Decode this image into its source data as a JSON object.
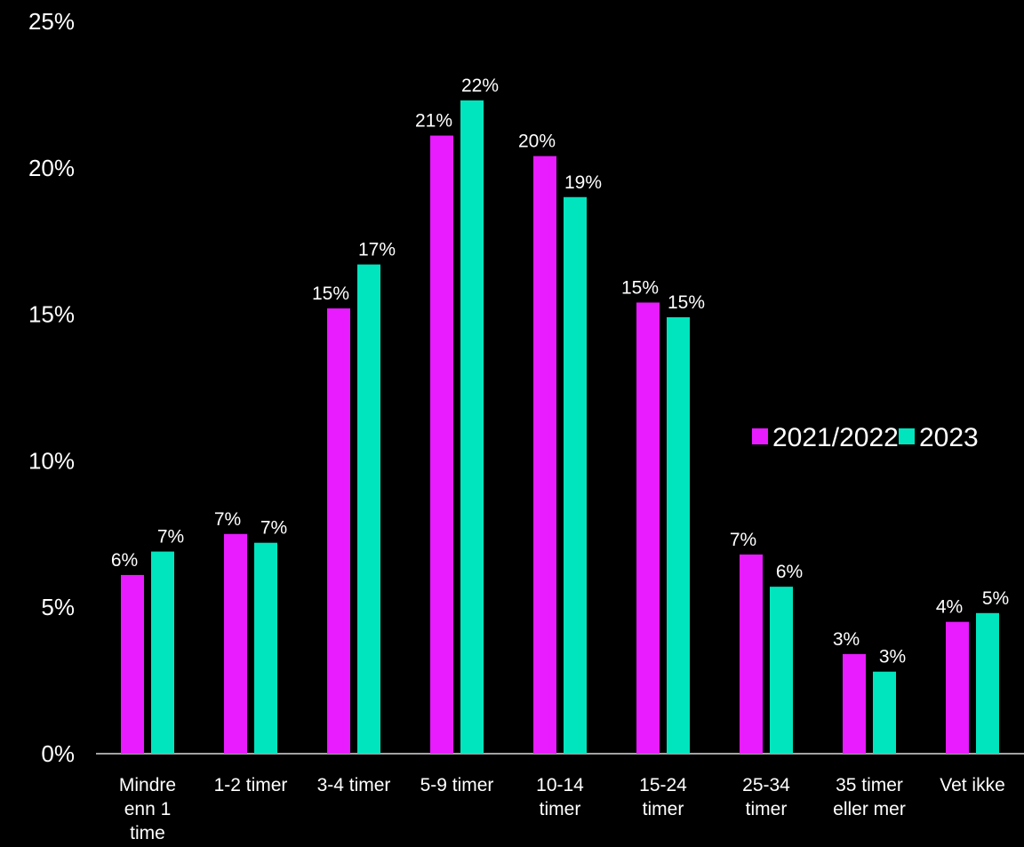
{
  "chart_data": {
    "type": "bar",
    "categories": [
      [
        "Mindre",
        "enn 1",
        "time"
      ],
      [
        "1-2 timer"
      ],
      [
        "3-4 timer"
      ],
      [
        "5-9 timer"
      ],
      [
        "10-14",
        "timer"
      ],
      [
        "15-24",
        "timer"
      ],
      [
        "25-34",
        "timer"
      ],
      [
        "35 timer",
        "eller mer"
      ],
      [
        "Vet ikke"
      ]
    ],
    "series": [
      {
        "name": "2021/2022",
        "color": "#E81CFF",
        "values": [
          6.1,
          7.5,
          15.2,
          21.1,
          20.4,
          15.4,
          6.8,
          3.4,
          4.5
        ],
        "labels": [
          "6%",
          "7%",
          "15%",
          "21%",
          "20%",
          "15%",
          "7%",
          "3%",
          "4%"
        ]
      },
      {
        "name": "2023",
        "color": "#00E5BE",
        "values": [
          6.9,
          7.2,
          16.7,
          22.3,
          19.0,
          14.9,
          5.7,
          2.8,
          4.8
        ],
        "labels": [
          "7%",
          "7%",
          "17%",
          "22%",
          "19%",
          "15%",
          "6%",
          "3%",
          "5%"
        ]
      }
    ],
    "yticks": [
      "0%",
      "5%",
      "10%",
      "15%",
      "20%",
      "25%"
    ],
    "ylim": [
      0,
      25
    ],
    "legend_position": "right",
    "grid": false,
    "background": "#000000"
  }
}
